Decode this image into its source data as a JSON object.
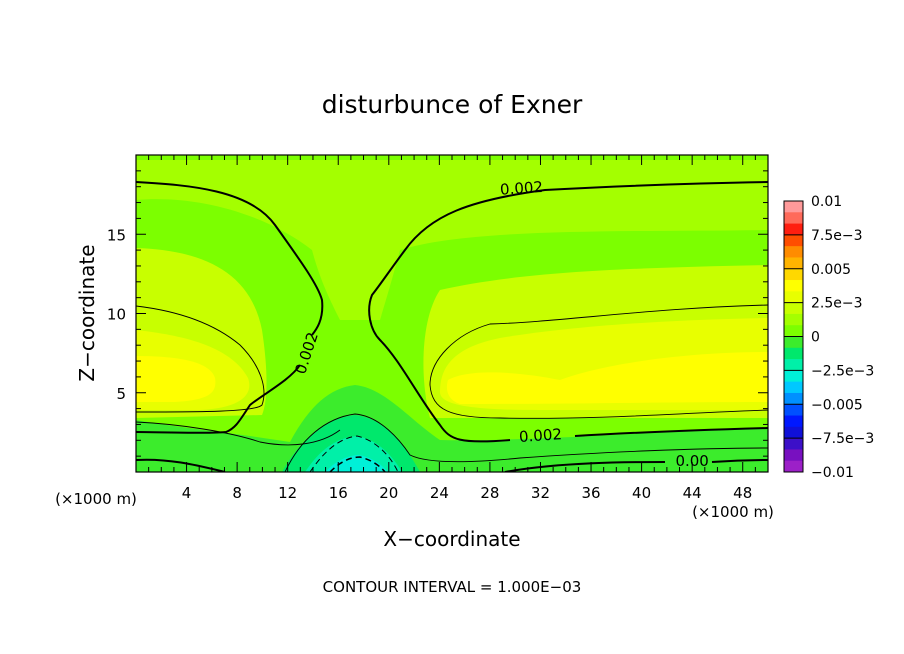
{
  "chart_data": {
    "type": "heatmap",
    "title": "disturbunce of Exner",
    "xlabel": "X−coordinate",
    "ylabel": "Z−coordinate",
    "x_unit_left": "(×1000 m)",
    "x_unit_right": "(×1000 m)",
    "footer": "CONTOUR INTERVAL = 1.000E−03",
    "xlim": [
      0,
      50
    ],
    "ylim": [
      0,
      20
    ],
    "x_ticks": [
      4,
      8,
      12,
      16,
      20,
      24,
      28,
      32,
      36,
      40,
      44,
      48
    ],
    "y_ticks": [
      5,
      10,
      15
    ],
    "colorbar": {
      "min": -0.01,
      "max": 0.01,
      "labels": [
        "0.01",
        "7.5e−3",
        "0.005",
        "2.5e−3",
        "0",
        "−2.5e−3",
        "−0.005",
        "−7.5e−3",
        "−0.01"
      ],
      "colors": [
        "#ff9a9a",
        "#ff6a5a",
        "#ff1e10",
        "#ff4e00",
        "#ff8c00",
        "#ffb400",
        "#ffd800",
        "#ffff00",
        "#e8ff00",
        "#c8ff00",
        "#a4ff00",
        "#7cff00",
        "#3cec2c",
        "#00e86c",
        "#00f0a8",
        "#00f0d8",
        "#00c8ff",
        "#0090ff",
        "#0050ff",
        "#0018ff",
        "#1010d8",
        "#3c10c8",
        "#7810c0",
        "#9c20c8"
      ]
    },
    "contour_labels": [
      {
        "text": "0.002",
        "x": 30.5,
        "z": 17.9
      },
      {
        "text": "0.002",
        "x": 13.5,
        "z": 7.5
      },
      {
        "text": "0.002",
        "x": 32.0,
        "z": 2.3
      },
      {
        "text": "0.00",
        "x": 44.0,
        "z": 0.7
      }
    ],
    "field_regions": [
      {
        "value": 0.003,
        "desc": "left bulge",
        "x": [
          0,
          10
        ],
        "z": [
          3,
          10
        ]
      },
      {
        "value": 0.0034,
        "desc": "right bulge",
        "x": [
          23,
          50
        ],
        "z": [
          3,
          10
        ]
      },
      {
        "value": -0.002,
        "desc": "mountain core",
        "x": [
          14,
          21
        ],
        "z": [
          0,
          2
        ]
      }
    ]
  }
}
